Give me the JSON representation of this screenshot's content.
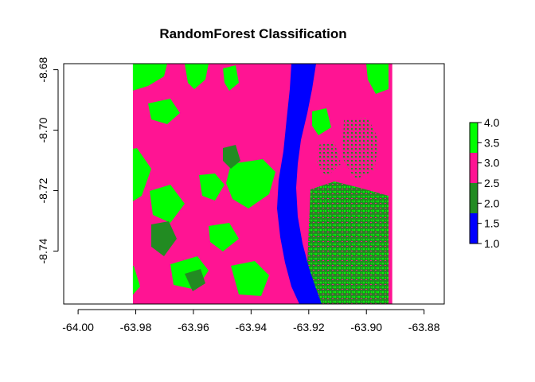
{
  "chart_data": {
    "type": "heatmap",
    "title": "RandomForest Classification",
    "xlabel": "",
    "ylabel": "",
    "x_ticks": [
      "-64.00",
      "-63.98",
      "-63.96",
      "-63.94",
      "-63.92",
      "-63.90",
      "-63.88"
    ],
    "y_ticks": [
      "-8.68",
      "-8.70",
      "-8.72",
      "-8.74"
    ],
    "xlim": [
      -64.005,
      -63.873
    ],
    "ylim": [
      -8.7575,
      -8.678
    ],
    "raster_extent": {
      "x": [
        -63.981,
        -63.891
      ],
      "y": [
        -8.7575,
        -8.678
      ]
    },
    "legend": {
      "placement": "right",
      "range": [
        1.0,
        4.0
      ],
      "labels": [
        "1.0",
        "1.5",
        "2.0",
        "2.5",
        "3.0",
        "3.5",
        "4.0"
      ],
      "classes": [
        {
          "from": 1.0,
          "to": 1.75,
          "color": "#0000ff"
        },
        {
          "from": 1.75,
          "to": 2.5,
          "color": "#228b22"
        },
        {
          "from": 2.5,
          "to": 3.25,
          "color": "#ff1493"
        },
        {
          "from": 3.25,
          "to": 4.0,
          "color": "#00ff00"
        }
      ]
    },
    "grid": false
  }
}
